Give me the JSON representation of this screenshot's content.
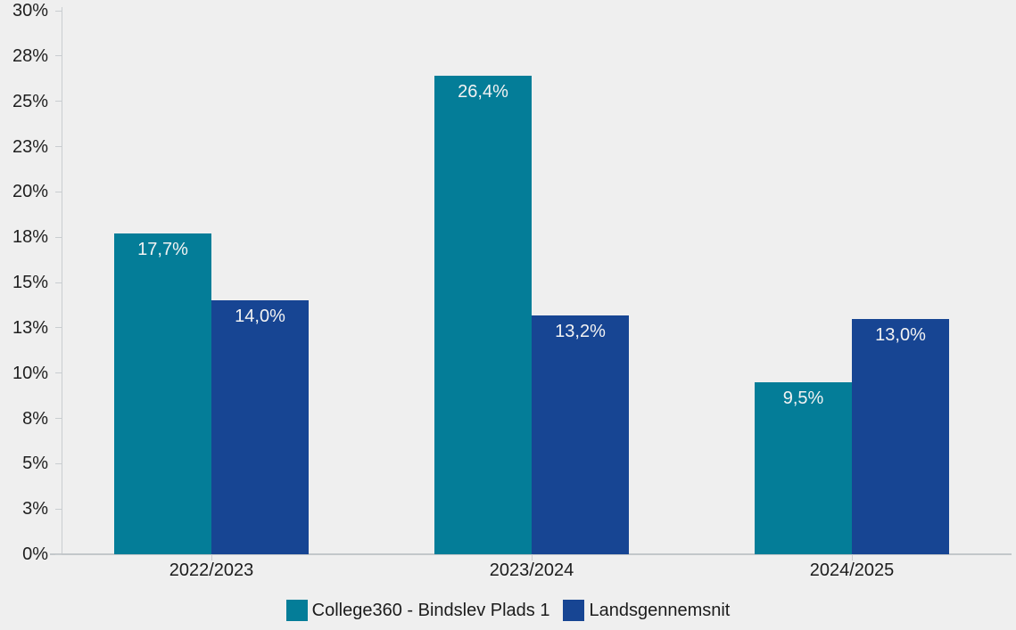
{
  "chart_data": {
    "type": "bar",
    "title": "",
    "xlabel": "",
    "ylabel": "",
    "background": "#efefef",
    "grid": false,
    "legend_position": "bottom",
    "ylim": [
      0,
      30
    ],
    "categories": [
      "2022/2023",
      "2023/2024",
      "2024/2025"
    ],
    "series": [
      {
        "key": "college360-bindslev-plads-1",
        "name": "College360 - Bindslev Plads 1",
        "color": "#047d98",
        "values": [
          17.7,
          26.4,
          9.5
        ],
        "labels": [
          "17,7%",
          "26,4%",
          "9,5%"
        ]
      },
      {
        "key": "landsgennemsnit",
        "name": "Landsgennemsnit",
        "color": "#174593",
        "values": [
          14.0,
          13.2,
          13.0
        ],
        "labels": [
          "14,0%",
          "13,2%",
          "13,0%"
        ]
      }
    ],
    "y_ticks": [
      {
        "value": 0,
        "label": "0%"
      },
      {
        "value": 2.5,
        "label": "3%"
      },
      {
        "value": 5,
        "label": "5%"
      },
      {
        "value": 7.5,
        "label": "8%"
      },
      {
        "value": 10,
        "label": "10%"
      },
      {
        "value": 12.5,
        "label": "13%"
      },
      {
        "value": 15,
        "label": "15%"
      },
      {
        "value": 17.5,
        "label": "18%"
      },
      {
        "value": 20,
        "label": "20%"
      },
      {
        "value": 22.5,
        "label": "23%"
      },
      {
        "value": 25,
        "label": "25%"
      },
      {
        "value": 27.5,
        "label": "28%"
      },
      {
        "value": 30,
        "label": "30%"
      }
    ]
  }
}
